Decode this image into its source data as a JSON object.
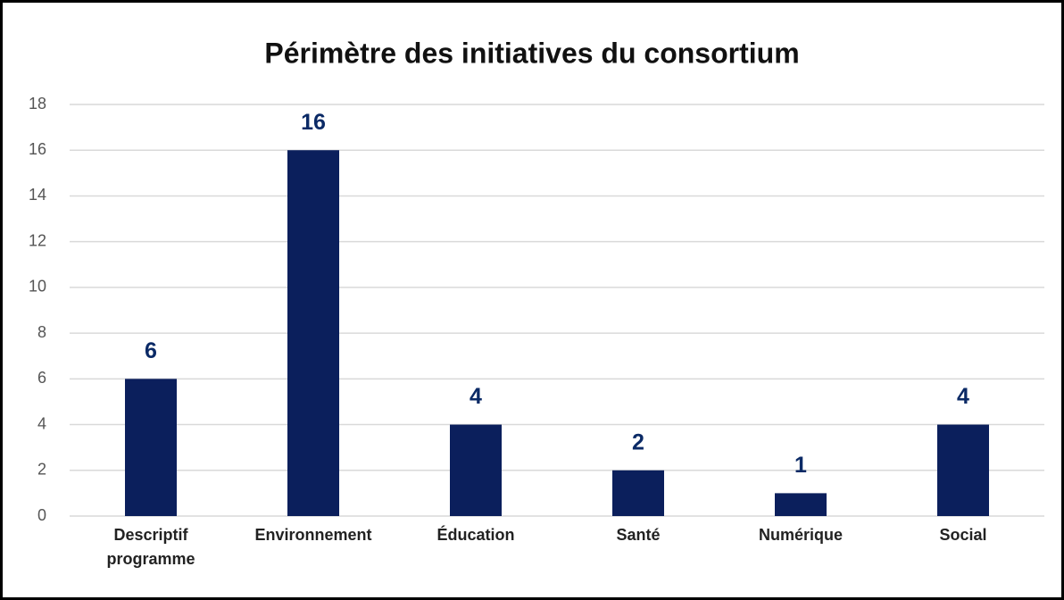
{
  "chart_data": {
    "type": "bar",
    "title": "Périmètre des initiatives du consortium",
    "categories": [
      "Descriptif programme",
      "Environnement",
      "Éducation",
      "Santé",
      "Numérique",
      "Social"
    ],
    "values": [
      6,
      16,
      4,
      2,
      1,
      4
    ],
    "color": "#0b1f5c",
    "label_color": "#0b2a66",
    "ylim": [
      0,
      18
    ],
    "yticks": [
      0,
      2,
      4,
      6,
      8,
      10,
      12,
      14,
      16,
      18
    ],
    "grid": true
  }
}
